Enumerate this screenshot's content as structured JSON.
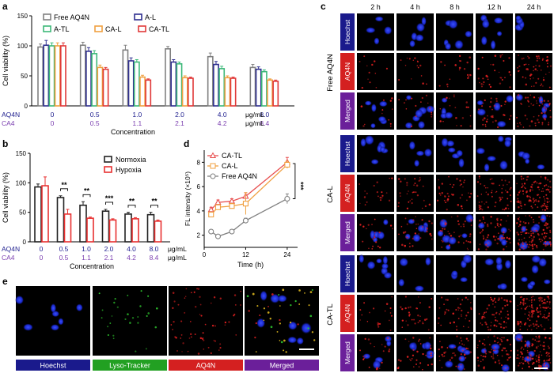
{
  "panels": {
    "a": {
      "letter": "a",
      "chart_data": {
        "type": "bar",
        "ylabel": "Cell viability (%)",
        "xlabel": "Concentration",
        "ylim": [
          0,
          150
        ],
        "yticks": [
          0,
          50,
          100,
          150
        ],
        "row_labels": [
          "AQ4N",
          "CA4"
        ],
        "row_units": "μg/mL",
        "groups": [
          {
            "aq4n": "0",
            "ca4": "0"
          },
          {
            "aq4n": "0.5",
            "ca4": "0.5"
          },
          {
            "aq4n": "1.0",
            "ca4": "1.1"
          },
          {
            "aq4n": "2.0",
            "ca4": "2.1"
          },
          {
            "aq4n": "4.0",
            "ca4": "4.2"
          },
          {
            "aq4n": "8.0",
            "ca4": "8.4"
          }
        ],
        "series": [
          {
            "name": "Free AQ4N",
            "color": "#808080",
            "values": [
              98,
              101,
              93,
              95,
              82,
              64
            ],
            "errors": [
              5,
              5,
              8,
              4,
              6,
              5
            ]
          },
          {
            "name": "A-L",
            "color": "#2f2f8f",
            "values": [
              101,
              91,
              75,
              73,
              69,
              61
            ],
            "errors": [
              8,
              6,
              5,
              4,
              5,
              4
            ]
          },
          {
            "name": "A-TL",
            "color": "#3cb878",
            "values": [
              100,
              87,
              73,
              70,
              62,
              57
            ],
            "errors": [
              5,
              5,
              4,
              3,
              4,
              3
            ]
          },
          {
            "name": "CA-L",
            "color": "#f0a040",
            "values": [
              100,
              64,
              48,
              47,
              47,
              43
            ],
            "errors": [
              5,
              4,
              3,
              3,
              3,
              2
            ]
          },
          {
            "name": "CA-TL",
            "color": "#e03838",
            "values": [
              100,
              61,
              43,
              46,
              46,
              41
            ],
            "errors": [
              5,
              3,
              2,
              2,
              2,
              2
            ]
          }
        ],
        "legend_position": "top"
      }
    },
    "b": {
      "letter": "b",
      "chart_data": {
        "type": "bar",
        "ylabel": "Cell viability (%)",
        "xlabel": "Concentration",
        "ylim": [
          0,
          150
        ],
        "yticks": [
          0,
          50,
          100,
          150
        ],
        "row_labels": [
          "AQ4N",
          "CA4"
        ],
        "row_units": "μg/mL",
        "groups": [
          {
            "aq4n": "0",
            "ca4": "0"
          },
          {
            "aq4n": "0.5",
            "ca4": "0.5"
          },
          {
            "aq4n": "1.0",
            "ca4": "1.1"
          },
          {
            "aq4n": "2.0",
            "ca4": "2.1"
          },
          {
            "aq4n": "4.0",
            "ca4": "4.2"
          },
          {
            "aq4n": "8.0",
            "ca4": "8.4"
          }
        ],
        "series": [
          {
            "name": "Normoxia",
            "color": "#222222",
            "values": [
              93,
              75,
              62,
              52,
              47,
              46
            ],
            "errors": [
              5,
              3,
              6,
              3,
              3,
              4
            ]
          },
          {
            "name": "Hypoxia",
            "color": "#e83030",
            "values": [
              95,
              47,
              40,
              37,
              39,
              35
            ],
            "errors": [
              15,
              8,
              2,
              2,
              2,
              2
            ]
          }
        ],
        "significance": [
          "**",
          "**",
          "***",
          "**",
          "**"
        ],
        "legend_position": "top-right"
      }
    },
    "d": {
      "letter": "d",
      "chart_data": {
        "type": "line",
        "ylabel": "FL intensity (×10⁵)",
        "xlabel": "Time (h)",
        "ylim": [
          1,
          9
        ],
        "yticks": [
          2,
          4,
          6,
          8
        ],
        "xlim": [
          0,
          27
        ],
        "xticks": [
          0,
          12,
          24
        ],
        "series": [
          {
            "name": "CA-TL",
            "color": "#e85050",
            "marker": "triangle",
            "x": [
              2,
              4,
              8,
              12,
              24
            ],
            "y": [
              4.1,
              4.7,
              4.8,
              5.2,
              8.0
            ],
            "errors": [
              0.2,
              0.2,
              0.2,
              0.3,
              0.4
            ]
          },
          {
            "name": "CA-L",
            "color": "#f0a040",
            "marker": "square",
            "x": [
              2,
              4,
              8,
              12,
              24
            ],
            "y": [
              3.7,
              4.3,
              4.4,
              4.6,
              7.8
            ],
            "errors": [
              0.2,
              0.2,
              0.2,
              0.9,
              0.3
            ]
          },
          {
            "name": "Free AQ4N",
            "color": "#808080",
            "marker": "circle",
            "x": [
              2,
              4,
              8,
              12,
              24
            ],
            "y": [
              2.3,
              1.9,
              2.3,
              3.2,
              5.0
            ],
            "errors": [
              0.1,
              0.1,
              0.1,
              0.2,
              0.4
            ]
          }
        ],
        "annotation": "***",
        "legend_position": "top-left"
      }
    },
    "c": {
      "letter": "c",
      "time_labels": [
        "2 h",
        "4 h",
        "8 h",
        "12 h",
        "24 h"
      ],
      "groups": [
        {
          "label": "Free AQ4N",
          "channels": [
            "Hoechst",
            "AQ4N",
            "Merged"
          ]
        },
        {
          "label": "CA-L",
          "channels": [
            "Hoechst",
            "AQ4N",
            "Merged"
          ]
        },
        {
          "label": "CA-TL",
          "channels": [
            "Hoechst",
            "AQ4N",
            "Merged"
          ]
        }
      ]
    },
    "e": {
      "letter": "e",
      "channels": [
        {
          "label": "Hoechst",
          "color": "#1a1a8c"
        },
        {
          "label": "Lyso-Tracker",
          "color": "#22a022"
        },
        {
          "label": "AQ4N",
          "color": "#d42020"
        },
        {
          "label": "Merged",
          "color": "#6b1f9a"
        }
      ]
    }
  },
  "colors": {
    "hoechst_label": "#1a1a8c",
    "aq4n_label": "#d42020",
    "merged_label": "#6b1f9a",
    "ca4_text": "#7b3fb0",
    "aq4n_text": "#1a1a8c"
  }
}
